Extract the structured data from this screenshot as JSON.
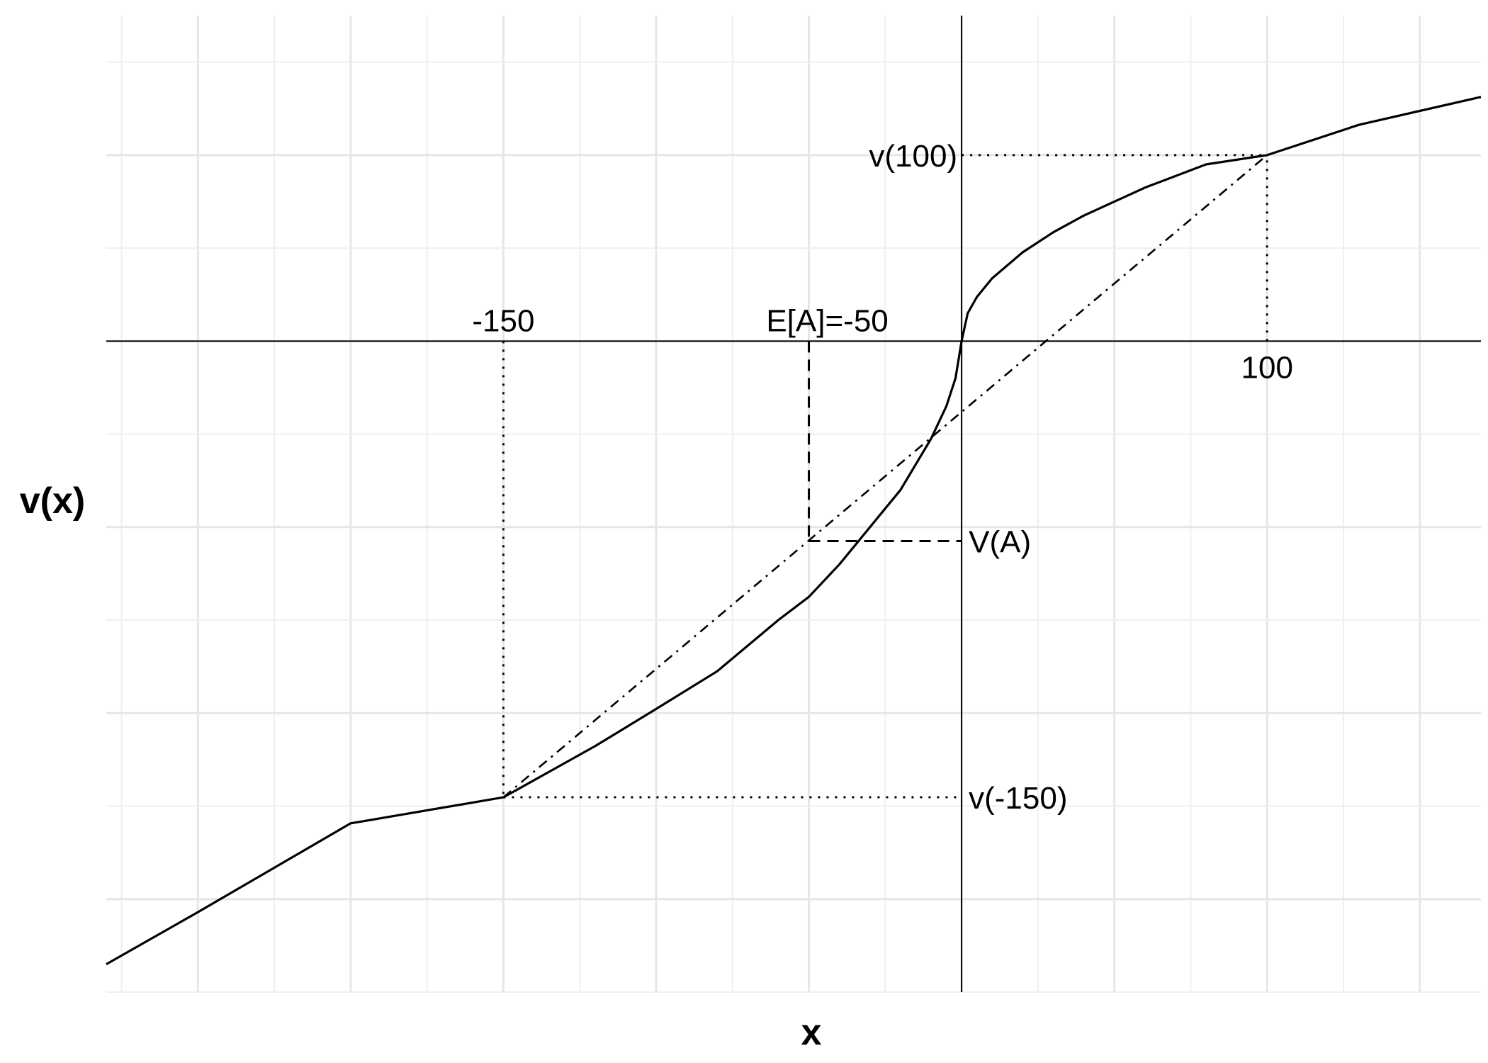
{
  "chart_data": {
    "type": "line",
    "title": "",
    "xlabel": "x",
    "ylabel": "v(x)",
    "xlim": [
      -280,
      170
    ],
    "ylim": [
      -140,
      70
    ],
    "grid": true,
    "x_major_breaks": [
      -250,
      -200,
      -150,
      -100,
      -50,
      0,
      50,
      100,
      150
    ],
    "y_major_breaks": [
      -120,
      -80,
      -40,
      0,
      40
    ],
    "series": [
      {
        "style": "solid",
        "x": [
          -280,
          -250,
          -200,
          -150,
          -120,
          -100,
          -80,
          -60,
          -50,
          -40,
          -30,
          -20,
          -10,
          -5,
          -2,
          0,
          2,
          5,
          10,
          20,
          30,
          40,
          60,
          80,
          100,
          130,
          170
        ],
        "y": [
          -134.0,
          -122.8,
          -103.7,
          -98.1,
          -87.1,
          -79.1,
          -71.0,
          -60.0,
          -55.0,
          -48.0,
          -40.0,
          -32.0,
          -21.0,
          -14.0,
          -8.0,
          0,
          6.0,
          9.5,
          13.5,
          19.1,
          23.4,
          27.0,
          33.0,
          38.0,
          40.0,
          46.5,
          52.5
        ]
      },
      {
        "style": "dash-dot",
        "x": [
          -150,
          100
        ],
        "y": [
          -98.1,
          40.0
        ]
      }
    ],
    "annotations": [
      {
        "label": "-150",
        "x": -150,
        "y": 0
      },
      {
        "label": "E[A]=-50",
        "x": -50,
        "y": 0
      },
      {
        "label": "100",
        "x": 100,
        "y": 0
      },
      {
        "label": "v(100)",
        "x": 0,
        "y": 40.0
      },
      {
        "label": "V(A)",
        "x": 0,
        "y": -43.0
      },
      {
        "label": "v(-150)",
        "x": 0,
        "y": -98.1
      }
    ],
    "guides": [
      {
        "style": "dotted",
        "from": [
          -150,
          0
        ],
        "to": [
          -150,
          -98.1
        ]
      },
      {
        "style": "dotted",
        "from": [
          -150,
          -98.1
        ],
        "to": [
          0,
          -98.1
        ]
      },
      {
        "style": "dotted",
        "from": [
          100,
          0
        ],
        "to": [
          100,
          40.0
        ]
      },
      {
        "style": "dotted",
        "from": [
          0,
          40.0
        ],
        "to": [
          100,
          40.0
        ]
      },
      {
        "style": "dashed",
        "from": [
          -50,
          0
        ],
        "to": [
          -50,
          -43.0
        ]
      },
      {
        "style": "dashed",
        "from": [
          -50,
          -43.0
        ],
        "to": [
          0,
          -43.0
        ]
      }
    ]
  }
}
